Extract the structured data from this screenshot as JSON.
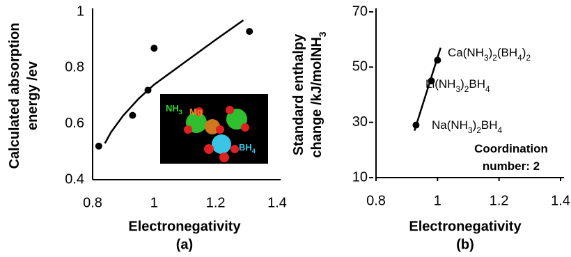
{
  "chart_data": [
    {
      "type": "scatter",
      "caption": "(a)",
      "xlabel": "Electronegativity",
      "ylabel": [
        [
          "Calculated absorption"
        ],
        [
          "energy /ev"
        ]
      ],
      "xlim": [
        0.8,
        1.4
      ],
      "ylim": [
        0.4,
        1
      ],
      "xticks": [
        0.8,
        1,
        1.2,
        1.4
      ],
      "yticks": [
        0.4,
        0.6,
        0.8,
        1
      ],
      "tick_marks": false,
      "series": [
        {
          "mode": "markers",
          "color": "#000000",
          "x": [
            0.82,
            0.93,
            0.98,
            1.0,
            1.31
          ],
          "values": [
            0.52,
            0.63,
            0.72,
            0.87,
            0.93
          ]
        },
        {
          "mode": "line",
          "color": "#000000",
          "x": [
            0.84,
            0.86,
            0.9,
            0.95,
            1.0,
            1.1,
            1.2,
            1.29
          ],
          "values": [
            0.53,
            0.57,
            0.63,
            0.69,
            0.74,
            0.82,
            0.9,
            0.97
          ]
        }
      ],
      "inset_labels": [
        [
          "NH",
          {
            "sub": "3"
          }
        ],
        [
          "Mg"
        ],
        [
          "BH",
          {
            "sub": "4"
          }
        ]
      ],
      "annotations": []
    },
    {
      "type": "scatter",
      "caption": "(b)",
      "xlabel": "Electronegativity",
      "ylabel": [
        [
          "Standard enthalpy"
        ],
        [
          "change /kJ/molNH",
          {
            "sub": "3"
          }
        ]
      ],
      "xlim": [
        0.8,
        1.4
      ],
      "ylim": [
        10,
        70
      ],
      "xticks": [
        0.8,
        1,
        1.2,
        1.4
      ],
      "yticks": [
        10,
        30,
        50,
        70
      ],
      "tick_marks": true,
      "series": [
        {
          "mode": "markers",
          "color": "#000000",
          "x": [
            0.93,
            0.98,
            1.0
          ],
          "values": [
            29,
            45,
            52.5
          ]
        },
        {
          "mode": "line",
          "color": "#000000",
          "x": [
            0.925,
            1.01
          ],
          "values": [
            27,
            57
          ]
        }
      ],
      "annotations": [
        [
          "Ca(NH",
          {
            "sub": "3"
          },
          ")",
          {
            "sub": "2"
          },
          "(BH",
          {
            "sub": "4"
          },
          ")",
          {
            "sub": "2"
          }
        ],
        [
          "Li(NH",
          {
            "sub": "3"
          },
          ")",
          {
            "sub": "2"
          },
          "BH",
          {
            "sub": "4"
          }
        ],
        [
          "Na(NH",
          {
            "sub": "3"
          },
          ")",
          {
            "sub": "2"
          },
          "BH",
          {
            "sub": "4"
          }
        ],
        [
          "Coordination"
        ],
        [
          "number: 2"
        ]
      ]
    }
  ]
}
